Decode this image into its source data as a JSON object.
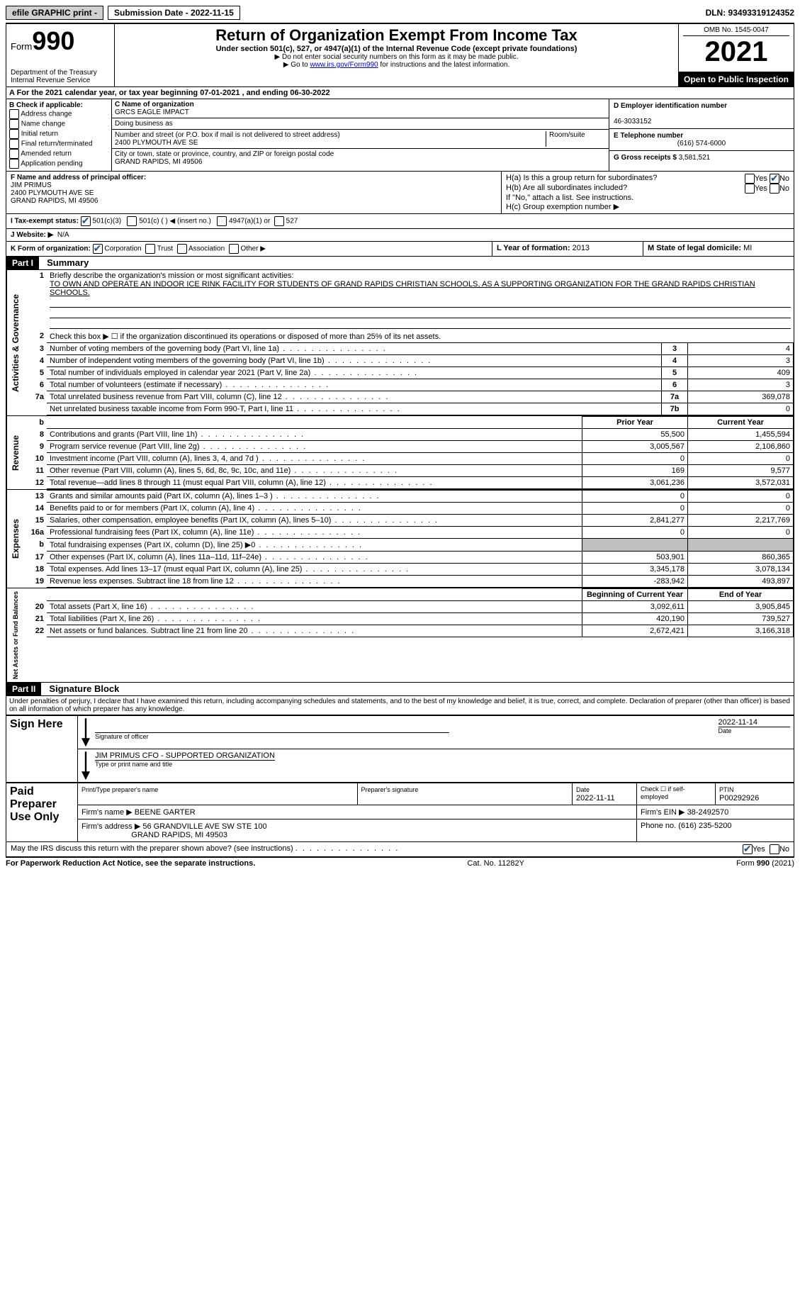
{
  "topbar": {
    "efile": "efile GRAPHIC print -",
    "submission": "Submission Date - 2022-11-15",
    "dln": "DLN: 93493319124352"
  },
  "header": {
    "form_label": "Form",
    "form_num": "990",
    "dept": "Department of the Treasury\nInternal Revenue Service",
    "title": "Return of Organization Exempt From Income Tax",
    "subtitle": "Under section 501(c), 527, or 4947(a)(1) of the Internal Revenue Code (except private foundations)",
    "note1": "▶ Do not enter social security numbers on this form as it may be made public.",
    "note2_pre": "▶ Go to ",
    "note2_link": "www.irs.gov/Form990",
    "note2_post": " for instructions and the latest information.",
    "omb": "OMB No. 1545-0047",
    "year": "2021",
    "inspection": "Open to Public Inspection"
  },
  "section_a": "A For the 2021 calendar year, or tax year beginning 07-01-2021    , and ending 06-30-2022",
  "section_b": {
    "label": "B Check if applicable:",
    "items": [
      "Address change",
      "Name change",
      "Initial return",
      "Final return/terminated",
      "Amended return",
      "Application pending"
    ]
  },
  "section_c": {
    "name_label": "C Name of organization",
    "name": "GRCS EAGLE IMPACT",
    "dba_label": "Doing business as",
    "street_label": "Number and street (or P.O. box if mail is not delivered to street address)",
    "room_label": "Room/suite",
    "street": "2400 PLYMOUTH AVE SE",
    "city_label": "City or town, state or province, country, and ZIP or foreign postal code",
    "city": "GRAND RAPIDS, MI  49506"
  },
  "section_d": {
    "label": "D Employer identification number",
    "value": "46-3033152"
  },
  "section_e": {
    "label": "E Telephone number",
    "value": "(616) 574-6000"
  },
  "section_g": {
    "label": "G Gross receipts $",
    "value": "3,581,521"
  },
  "section_f": {
    "label": "F  Name and address of principal officer:",
    "name": "JIM PRIMUS",
    "addr1": "2400 PLYMOUTH AVE SE",
    "addr2": "GRAND RAPIDS, MI  49506"
  },
  "section_h": {
    "h_a": "H(a)  Is this a group return for subordinates?",
    "h_b": "H(b)  Are all subordinates included?",
    "h_b_note": "If \"No,\" attach a list. See instructions.",
    "h_c": "H(c)  Group exemption number ▶",
    "yes": "Yes",
    "no": "No"
  },
  "section_i": {
    "label": "I    Tax-exempt status:",
    "c3": "501(c)(3)",
    "c": "501(c) (  ) ◀ (insert no.)",
    "a1": "4947(a)(1) or",
    "s527": "527"
  },
  "section_j": {
    "label": "J   Website: ▶",
    "value": "N/A"
  },
  "section_k": {
    "label": "K Form of organization:",
    "corp": "Corporation",
    "trust": "Trust",
    "assoc": "Association",
    "other": "Other ▶"
  },
  "section_l": {
    "label": "L Year of formation:",
    "value": "2013"
  },
  "section_m": {
    "label": "M State of legal domicile:",
    "value": "MI"
  },
  "part1": {
    "header": "Part I",
    "title": "Summary",
    "vert1": "Activities & Governance",
    "vert2": "Revenue",
    "vert3": "Expenses",
    "vert4": "Net Assets or Fund Balances",
    "line1_label": "Briefly describe the organization's mission or most significant activities:",
    "line1_text": "TO OWN AND OPERATE AN INDOOR ICE RINK FACILITY FOR STUDENTS OF GRAND RAPIDS CHRISTIAN SCHOOLS, AS A SUPPORTING ORGANIZATION FOR THE GRAND RAPIDS CHRISTIAN SCHOOLS.",
    "line2": "Check this box ▶ ☐ if the organization discontinued its operations or disposed of more than 25% of its net assets.",
    "rows_gov": [
      {
        "n": "3",
        "label": "Number of voting members of the governing body (Part VI, line 1a)",
        "box": "3",
        "val": "4"
      },
      {
        "n": "4",
        "label": "Number of independent voting members of the governing body (Part VI, line 1b)",
        "box": "4",
        "val": "3"
      },
      {
        "n": "5",
        "label": "Total number of individuals employed in calendar year 2021 (Part V, line 2a)",
        "box": "5",
        "val": "409"
      },
      {
        "n": "6",
        "label": "Total number of volunteers (estimate if necessary)",
        "box": "6",
        "val": "3"
      },
      {
        "n": "7a",
        "label": "Total unrelated business revenue from Part VIII, column (C), line 12",
        "box": "7a",
        "val": "369,078"
      },
      {
        "n": "",
        "label": "Net unrelated business taxable income from Form 990-T, Part I, line 11",
        "box": "7b",
        "val": "0"
      }
    ],
    "col_head_prior": "Prior Year",
    "col_head_current": "Current Year",
    "rows_rev": [
      {
        "n": "8",
        "label": "Contributions and grants (Part VIII, line 1h)",
        "prior": "55,500",
        "cur": "1,455,594"
      },
      {
        "n": "9",
        "label": "Program service revenue (Part VIII, line 2g)",
        "prior": "3,005,567",
        "cur": "2,106,860"
      },
      {
        "n": "10",
        "label": "Investment income (Part VIII, column (A), lines 3, 4, and 7d )",
        "prior": "0",
        "cur": "0"
      },
      {
        "n": "11",
        "label": "Other revenue (Part VIII, column (A), lines 5, 6d, 8c, 9c, 10c, and 11e)",
        "prior": "169",
        "cur": "9,577"
      },
      {
        "n": "12",
        "label": "Total revenue—add lines 8 through 11 (must equal Part VIII, column (A), line 12)",
        "prior": "3,061,236",
        "cur": "3,572,031"
      }
    ],
    "rows_exp": [
      {
        "n": "13",
        "label": "Grants and similar amounts paid (Part IX, column (A), lines 1–3 )",
        "prior": "0",
        "cur": "0"
      },
      {
        "n": "14",
        "label": "Benefits paid to or for members (Part IX, column (A), line 4)",
        "prior": "0",
        "cur": "0"
      },
      {
        "n": "15",
        "label": "Salaries, other compensation, employee benefits (Part IX, column (A), lines 5–10)",
        "prior": "2,841,277",
        "cur": "2,217,769"
      },
      {
        "n": "16a",
        "label": "Professional fundraising fees (Part IX, column (A), line 11e)",
        "prior": "0",
        "cur": "0"
      },
      {
        "n": "b",
        "label": "Total fundraising expenses (Part IX, column (D), line 25) ▶0",
        "prior": "shaded",
        "cur": "shaded"
      },
      {
        "n": "17",
        "label": "Other expenses (Part IX, column (A), lines 11a–11d, 11f–24e)",
        "prior": "503,901",
        "cur": "860,365"
      },
      {
        "n": "18",
        "label": "Total expenses. Add lines 13–17 (must equal Part IX, column (A), line 25)",
        "prior": "3,345,178",
        "cur": "3,078,134"
      },
      {
        "n": "19",
        "label": "Revenue less expenses. Subtract line 18 from line 12",
        "prior": "-283,942",
        "cur": "493,897"
      }
    ],
    "col_head_beg": "Beginning of Current Year",
    "col_head_end": "End of Year",
    "rows_net": [
      {
        "n": "20",
        "label": "Total assets (Part X, line 16)",
        "prior": "3,092,611",
        "cur": "3,905,845"
      },
      {
        "n": "21",
        "label": "Total liabilities (Part X, line 26)",
        "prior": "420,190",
        "cur": "739,527"
      },
      {
        "n": "22",
        "label": "Net assets or fund balances. Subtract line 21 from line 20",
        "prior": "2,672,421",
        "cur": "3,166,318"
      }
    ]
  },
  "part2": {
    "header": "Part II",
    "title": "Signature Block",
    "declaration": "Under penalties of perjury, I declare that I have examined this return, including accompanying schedules and statements, and to the best of my knowledge and belief, it is true, correct, and complete. Declaration of preparer (other than officer) is based on all information of which preparer has any knowledge.",
    "sign_here": "Sign Here",
    "sig_officer": "Signature of officer",
    "sig_date": "2022-11-14",
    "date_label": "Date",
    "officer_name": "JIM PRIMUS CFO - SUPPORTED ORGANIZATION",
    "officer_label": "Type or print name and title",
    "paid_prep": "Paid Preparer Use Only",
    "prep_name_label": "Print/Type preparer's name",
    "prep_sig_label": "Preparer's signature",
    "prep_date_label": "Date",
    "prep_date": "2022-11-11",
    "self_emp": "Check ☐ if self-employed",
    "ptin_label": "PTIN",
    "ptin": "P00292926",
    "firm_name_label": "Firm's name    ▶",
    "firm_name": "BEENE GARTER",
    "firm_ein_label": "Firm's EIN ▶",
    "firm_ein": "38-2492570",
    "firm_addr_label": "Firm's address ▶",
    "firm_addr1": "56 GRANDVILLE AVE SW STE 100",
    "firm_addr2": "GRAND RAPIDS, MI  49503",
    "phone_label": "Phone no.",
    "phone": "(616) 235-5200",
    "discuss": "May the IRS discuss this return with the preparer shown above? (see instructions)",
    "yes": "Yes",
    "no": "No"
  },
  "footer": {
    "left": "For Paperwork Reduction Act Notice, see the separate instructions.",
    "mid": "Cat. No. 11282Y",
    "right": "Form 990 (2021)"
  }
}
